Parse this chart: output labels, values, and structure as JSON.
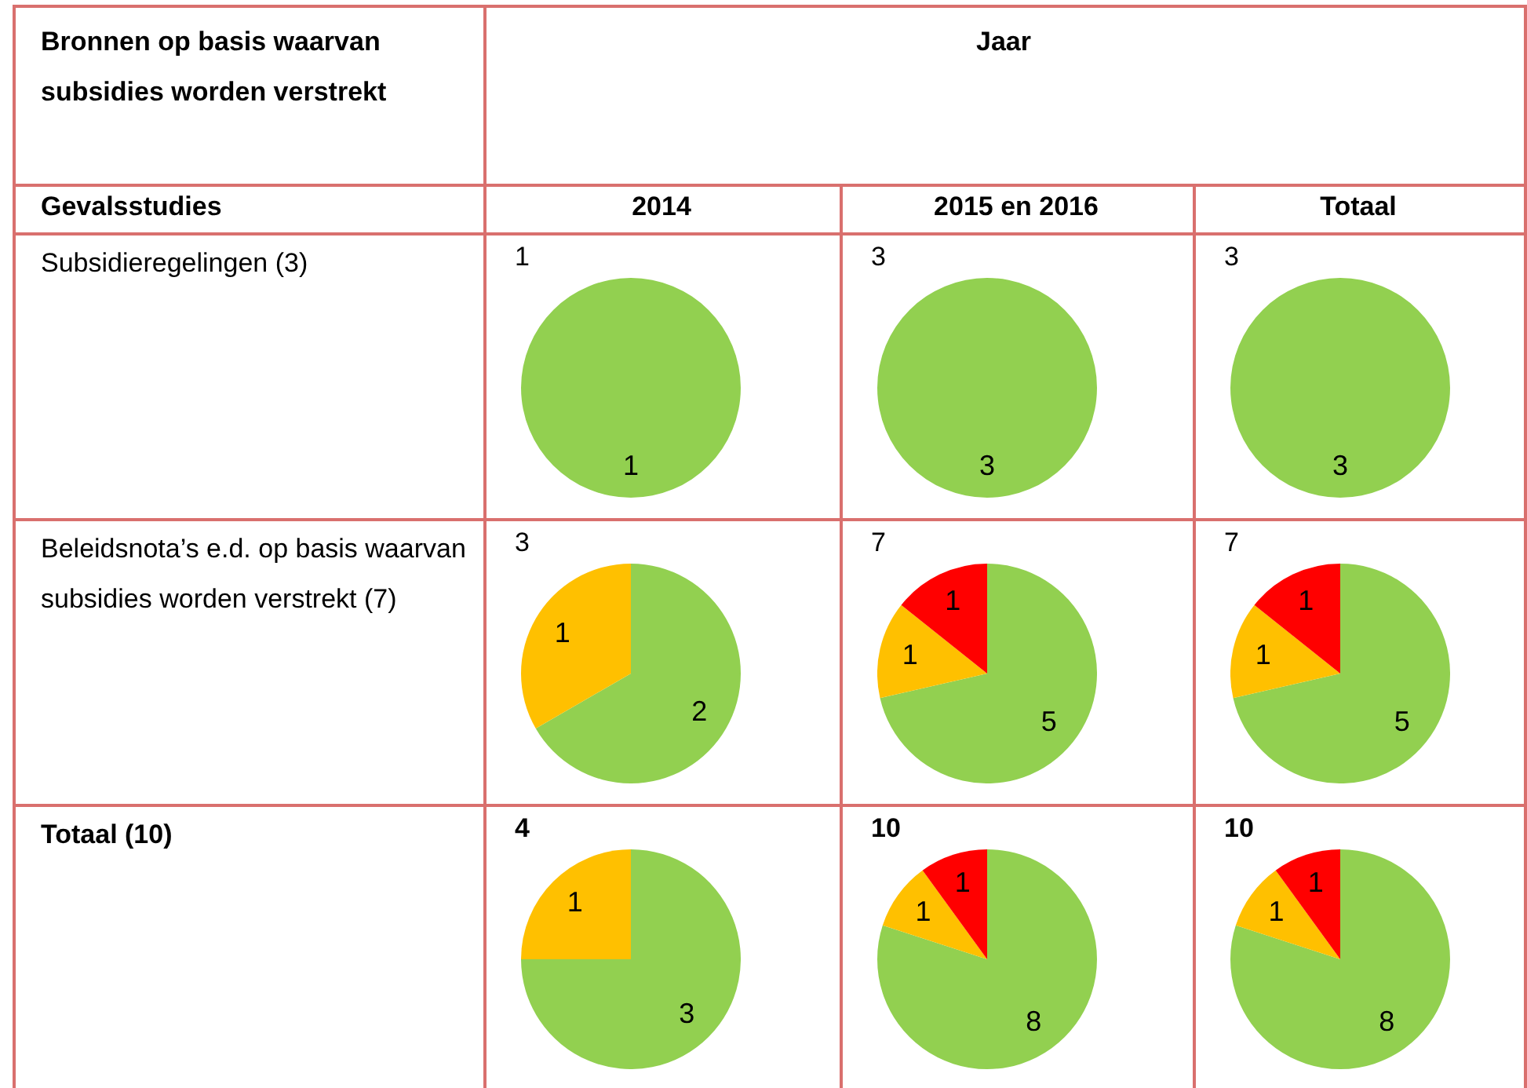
{
  "chart_data": [
    {
      "type": "other",
      "title": "Bronnen op basis waarvan subsidies worden verstrekt",
      "annotations": [
        "Jaar",
        "Gevalsstudies",
        "2014",
        "2015 en 2016",
        "Totaal",
        "Subsidieregelingen (3)",
        "Beleidsnota’s e.d. op basis waarvan subsidies worden verstrekt (7)",
        "Totaal (10)"
      ]
    },
    {
      "type": "pie",
      "title": "1",
      "categories": [
        null
      ],
      "values": [
        1
      ],
      "colors": [
        "#92d050"
      ],
      "data_labels": true
    },
    {
      "type": "pie",
      "title": "3",
      "categories": [
        null
      ],
      "values": [
        3
      ],
      "colors": [
        "#92d050"
      ],
      "data_labels": true
    },
    {
      "type": "pie",
      "title": "3",
      "categories": [
        null
      ],
      "values": [
        3
      ],
      "colors": [
        "#92d050"
      ],
      "data_labels": true
    },
    {
      "type": "pie",
      "title": "3",
      "categories": [
        null,
        null
      ],
      "values": [
        2,
        1
      ],
      "colors": [
        "#92d050",
        "#ffc000"
      ],
      "data_labels": true
    },
    {
      "type": "pie",
      "title": "7",
      "categories": [
        null,
        null,
        null
      ],
      "values": [
        5,
        1,
        1
      ],
      "colors": [
        "#92d050",
        "#ffc000",
        "#ff0000"
      ],
      "data_labels": true
    },
    {
      "type": "pie",
      "title": "7",
      "categories": [
        null,
        null,
        null
      ],
      "values": [
        5,
        1,
        1
      ],
      "colors": [
        "#92d050",
        "#ffc000",
        "#ff0000"
      ],
      "data_labels": true
    },
    {
      "type": "pie",
      "title": "4",
      "categories": [
        null,
        null
      ],
      "values": [
        3,
        1
      ],
      "colors": [
        "#92d050",
        "#ffc000"
      ],
      "data_labels": true
    },
    {
      "type": "pie",
      "title": "10",
      "categories": [
        null,
        null,
        null
      ],
      "values": [
        8,
        1,
        1
      ],
      "colors": [
        "#92d050",
        "#ffc000",
        "#ff0000"
      ],
      "data_labels": true
    },
    {
      "type": "pie",
      "title": "10",
      "categories": [
        null,
        null,
        null
      ],
      "values": [
        8,
        1,
        1
      ],
      "colors": [
        "#92d050",
        "#ffc000",
        "#ff0000"
      ],
      "data_labels": true
    }
  ]
}
